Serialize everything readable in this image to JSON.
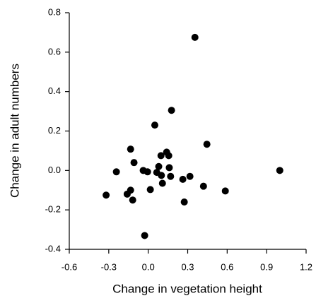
{
  "chart_data": {
    "type": "scatter",
    "x_label": "Change in vegetation height",
    "y_label": "Change in adult numbers",
    "color": "#000000",
    "xlim": [
      -0.6,
      1.2
    ],
    "ylim": [
      -0.4,
      0.8
    ],
    "xticks": [
      -0.6,
      -0.3,
      {
        "value": 0,
        "label": "0.0"
      },
      0.3,
      0.6,
      0.9,
      1.2
    ],
    "yticks": [
      -0.4,
      -0.2,
      {
        "value": 0,
        "label": "0.0"
      },
      0.2,
      0.4,
      0.6,
      0.8
    ],
    "x": [
      0.355,
      0.177,
      0.05,
      0.446,
      -0.134,
      0.14,
      0.097,
      0.156,
      -0.108,
      0.08,
      0.16,
      -0.242,
      -0.038,
      -0.005,
      0.065,
      0.1,
      0.17,
      0.317,
      0.263,
      0.108,
      0.016,
      -0.134,
      -0.16,
      -0.32,
      0.42,
      0.586,
      1.0,
      -0.118,
      0.274,
      -0.027
    ],
    "values": [
      0.675,
      0.305,
      0.23,
      0.133,
      0.108,
      0.093,
      0.075,
      0.075,
      0.04,
      0.02,
      0.014,
      -0.007,
      0.0,
      -0.007,
      -0.01,
      -0.025,
      -0.03,
      -0.03,
      -0.045,
      -0.065,
      -0.097,
      -0.1,
      -0.12,
      -0.125,
      -0.08,
      -0.104,
      0.0,
      -0.15,
      -0.16,
      -0.33
    ]
  }
}
